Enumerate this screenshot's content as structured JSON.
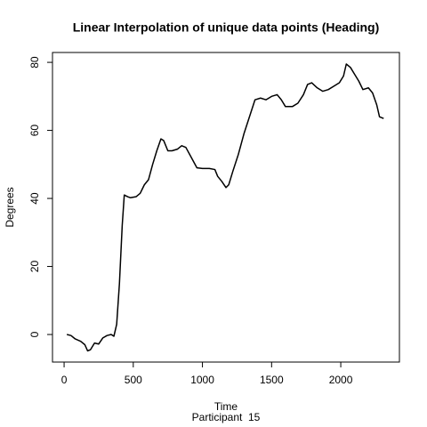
{
  "chart_data": {
    "type": "line",
    "title": "Linear Interpolation of unique data points (Heading)",
    "xlabel": "Time",
    "ylabel": "Degrees",
    "subtitle": "Participant  15",
    "xlim": [
      -84,
      2424
    ],
    "ylim": [
      -8.1,
      82.9
    ],
    "xticks": [
      0,
      500,
      1000,
      1500,
      2000
    ],
    "yticks": [
      0,
      20,
      40,
      60,
      80
    ],
    "grid": false,
    "series": [
      {
        "name": "Heading",
        "color": "#000000",
        "x": [
          20,
          50,
          80,
          120,
          150,
          170,
          190,
          220,
          250,
          280,
          310,
          340,
          360,
          380,
          400,
          420,
          435,
          460,
          480,
          520,
          550,
          580,
          610,
          640,
          670,
          700,
          720,
          750,
          780,
          820,
          850,
          880,
          920,
          960,
          1000,
          1050,
          1090,
          1110,
          1140,
          1170,
          1190,
          1220,
          1260,
          1300,
          1340,
          1380,
          1420,
          1460,
          1500,
          1540,
          1570,
          1600,
          1650,
          1690,
          1730,
          1760,
          1790,
          1830,
          1870,
          1910,
          1950,
          1990,
          2020,
          2040,
          2070,
          2100,
          2130,
          2160,
          2200,
          2230,
          2260,
          2280,
          2310
        ],
        "values": [
          0,
          -0.3,
          -1.3,
          -2,
          -3,
          -4.8,
          -4.5,
          -2.5,
          -2.8,
          -1,
          -0.3,
          0,
          -0.5,
          3,
          15,
          32,
          41,
          40.5,
          40.2,
          40.5,
          41.5,
          44,
          45.5,
          50,
          54,
          57.5,
          57,
          54,
          54,
          54.5,
          55.5,
          55,
          52,
          49,
          48.8,
          48.8,
          48.5,
          46.5,
          45,
          43.2,
          44,
          48,
          53,
          59,
          64,
          69,
          69.5,
          69,
          70,
          70.5,
          69,
          67,
          67,
          68,
          70.5,
          73.5,
          74,
          72.5,
          71.5,
          72,
          73,
          74,
          76,
          79.5,
          78.5,
          76.5,
          74.5,
          72,
          72.5,
          71,
          67.5,
          64,
          63.5
        ]
      }
    ]
  }
}
